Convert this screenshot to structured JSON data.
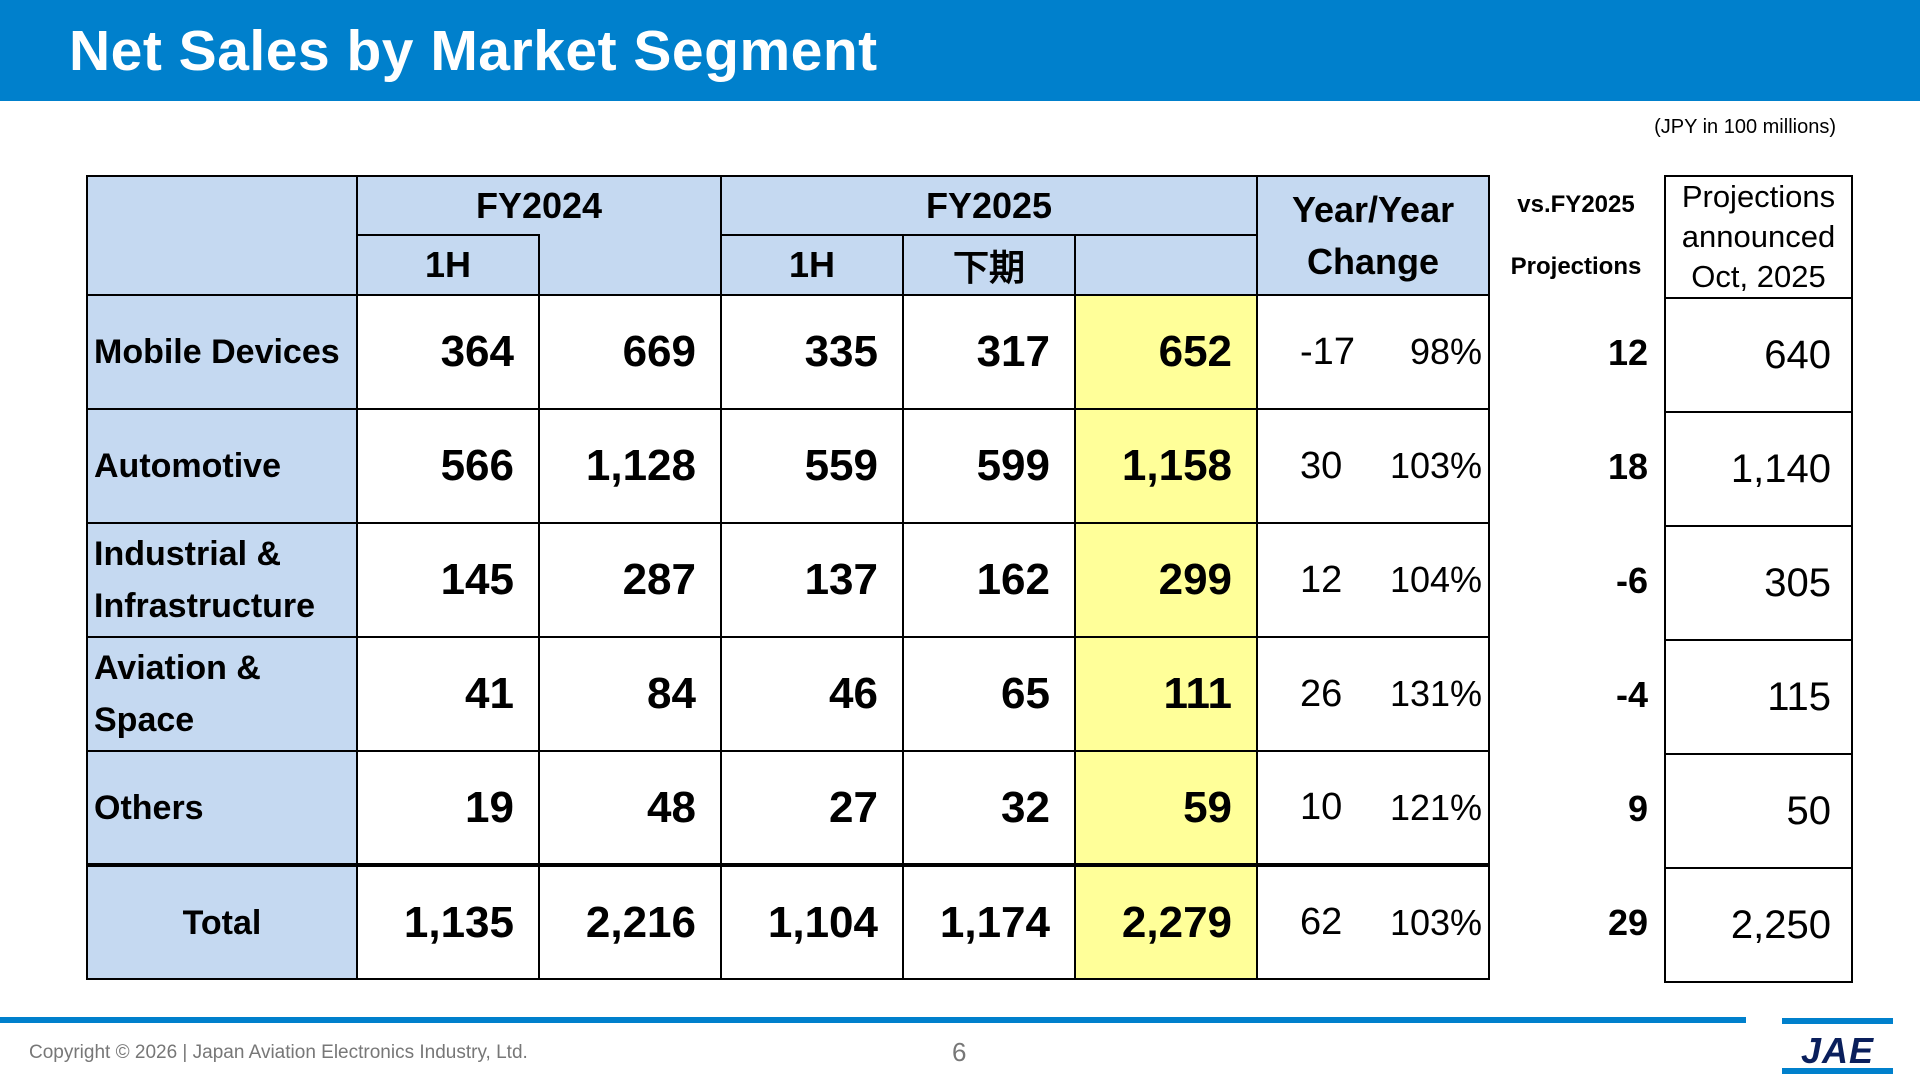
{
  "title": "Net Sales by Market Segment",
  "unit_note": "(JPY in 100 millions)",
  "table": {
    "headers": {
      "fy2024": "FY2024",
      "fy2025": "FY2025",
      "yoy_line1": "Year/Year",
      "yoy_line2": "Change",
      "half1": "1H",
      "half2": "下期"
    },
    "rows": [
      {
        "label": "Mobile Devices",
        "fy2024_1h": "364",
        "fy2024_total": "669",
        "fy2025_1h": "335",
        "fy2025_2h": "317",
        "fy2025_total": "652",
        "yoy_diff": "-17",
        "yoy_pct": "98%",
        "vs_proj": "12",
        "proj": "640"
      },
      {
        "label": "Automotive",
        "fy2024_1h": "566",
        "fy2024_total": "1,128",
        "fy2025_1h": "559",
        "fy2025_2h": "599",
        "fy2025_total": "1,158",
        "yoy_diff": "30",
        "yoy_pct": "103%",
        "vs_proj": "18",
        "proj": "1,140"
      },
      {
        "label": "Industrial & Infrastructure",
        "fy2024_1h": "145",
        "fy2024_total": "287",
        "fy2025_1h": "137",
        "fy2025_2h": "162",
        "fy2025_total": "299",
        "yoy_diff": "12",
        "yoy_pct": "104%",
        "vs_proj": "-6",
        "proj": "305"
      },
      {
        "label": "Aviation & Space",
        "fy2024_1h": "41",
        "fy2024_total": "84",
        "fy2025_1h": "46",
        "fy2025_2h": "65",
        "fy2025_total": "111",
        "yoy_diff": "26",
        "yoy_pct": "131%",
        "vs_proj": "-4",
        "proj": "115"
      },
      {
        "label": "Others",
        "fy2024_1h": "19",
        "fy2024_total": "48",
        "fy2025_1h": "27",
        "fy2025_2h": "32",
        "fy2025_total": "59",
        "yoy_diff": "10",
        "yoy_pct": "121%",
        "vs_proj": "9",
        "proj": "50"
      }
    ],
    "total": {
      "label": "Total",
      "fy2024_1h": "1,135",
      "fy2024_total": "2,216",
      "fy2025_1h": "1,104",
      "fy2025_2h": "1,174",
      "fy2025_total": "2,279",
      "yoy_diff": "62",
      "yoy_pct": "103%",
      "vs_proj": "29",
      "proj": "2,250"
    }
  },
  "vs_projection": {
    "line1": "vs.FY2025",
    "line2": "Projections"
  },
  "projections_header": "Projections announced Oct, 2025",
  "footer": {
    "copyright": "Copyright © 2026 | Japan Aviation Electronics Industry, Ltd.",
    "page_number": "6",
    "logo_text": "JAE"
  },
  "colors": {
    "brand_blue": "#0080cc",
    "header_cell": "#c5d9f1",
    "highlight": "#ffff99"
  }
}
